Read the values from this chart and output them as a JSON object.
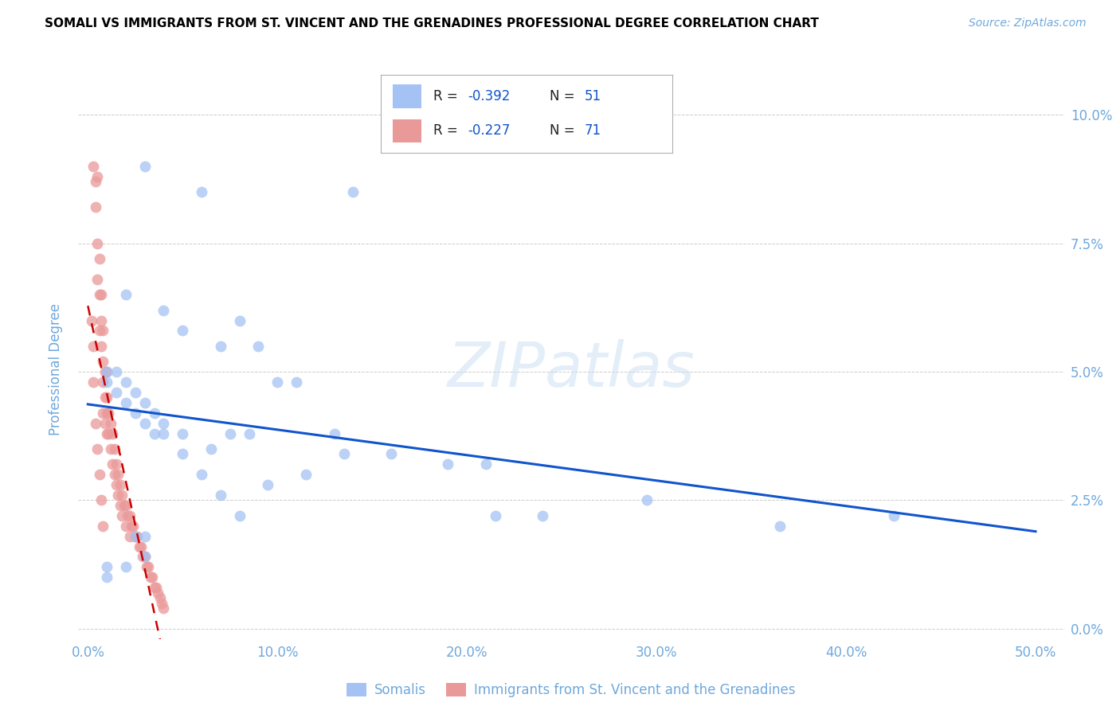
{
  "title": "SOMALI VS IMMIGRANTS FROM ST. VINCENT AND THE GRENADINES PROFESSIONAL DEGREE CORRELATION CHART",
  "source": "Source: ZipAtlas.com",
  "ylabel": "Professional Degree",
  "x_tick_labels": [
    "0.0%",
    "10.0%",
    "20.0%",
    "30.0%",
    "40.0%",
    "50.0%"
  ],
  "x_tick_values": [
    0.0,
    0.1,
    0.2,
    0.3,
    0.4,
    0.5
  ],
  "y_tick_labels": [
    "0.0%",
    "2.5%",
    "5.0%",
    "7.5%",
    "10.0%"
  ],
  "y_tick_values": [
    0.0,
    0.025,
    0.05,
    0.075,
    0.1
  ],
  "xlim": [
    -0.005,
    0.515
  ],
  "ylim": [
    -0.002,
    0.103
  ],
  "r_somali": -0.392,
  "n_somali": 51,
  "r_svg": -0.227,
  "n_svg": 71,
  "color_somali": "#a4c2f4",
  "color_svg": "#ea9999",
  "line_color_somali": "#1155cc",
  "line_color_svg": "#cc0000",
  "background": "#ffffff",
  "title_color": "#000000",
  "source_color": "#6fa8dc",
  "axis_label_color": "#6fa8dc",
  "tick_color": "#6fa8dc",
  "legend_labels": [
    "Somalis",
    "Immigrants from St. Vincent and the Grenadines"
  ],
  "somali_x": [
    0.03,
    0.06,
    0.14,
    0.02,
    0.04,
    0.05,
    0.07,
    0.08,
    0.09,
    0.1,
    0.11,
    0.13,
    0.015,
    0.02,
    0.025,
    0.03,
    0.035,
    0.04,
    0.05,
    0.065,
    0.075,
    0.085,
    0.095,
    0.115,
    0.135,
    0.16,
    0.19,
    0.21,
    0.01,
    0.01,
    0.015,
    0.02,
    0.025,
    0.03,
    0.035,
    0.04,
    0.05,
    0.06,
    0.07,
    0.08,
    0.215,
    0.24,
    0.295,
    0.365,
    0.425,
    0.01,
    0.01,
    0.02,
    0.025,
    0.03,
    0.03
  ],
  "somali_y": [
    0.09,
    0.085,
    0.085,
    0.065,
    0.062,
    0.058,
    0.055,
    0.06,
    0.055,
    0.048,
    0.048,
    0.038,
    0.05,
    0.048,
    0.046,
    0.044,
    0.042,
    0.04,
    0.038,
    0.035,
    0.038,
    0.038,
    0.028,
    0.03,
    0.034,
    0.034,
    0.032,
    0.032,
    0.05,
    0.048,
    0.046,
    0.044,
    0.042,
    0.04,
    0.038,
    0.038,
    0.034,
    0.03,
    0.026,
    0.022,
    0.022,
    0.022,
    0.025,
    0.02,
    0.022,
    0.012,
    0.01,
    0.012,
    0.018,
    0.018,
    0.014
  ],
  "svg_x": [
    0.003,
    0.004,
    0.004,
    0.005,
    0.005,
    0.005,
    0.006,
    0.006,
    0.006,
    0.007,
    0.007,
    0.007,
    0.008,
    0.008,
    0.008,
    0.008,
    0.009,
    0.009,
    0.009,
    0.01,
    0.01,
    0.01,
    0.01,
    0.011,
    0.011,
    0.012,
    0.012,
    0.013,
    0.013,
    0.014,
    0.014,
    0.015,
    0.015,
    0.016,
    0.016,
    0.017,
    0.017,
    0.018,
    0.018,
    0.019,
    0.02,
    0.02,
    0.021,
    0.022,
    0.022,
    0.023,
    0.024,
    0.025,
    0.026,
    0.027,
    0.028,
    0.029,
    0.03,
    0.031,
    0.032,
    0.033,
    0.034,
    0.035,
    0.036,
    0.037,
    0.038,
    0.039,
    0.04,
    0.002,
    0.003,
    0.003,
    0.004,
    0.005,
    0.006,
    0.007,
    0.008
  ],
  "svg_y": [
    0.09,
    0.087,
    0.082,
    0.088,
    0.075,
    0.068,
    0.072,
    0.065,
    0.058,
    0.065,
    0.06,
    0.055,
    0.058,
    0.052,
    0.048,
    0.042,
    0.05,
    0.045,
    0.04,
    0.05,
    0.045,
    0.042,
    0.038,
    0.042,
    0.038,
    0.04,
    0.035,
    0.038,
    0.032,
    0.035,
    0.03,
    0.032,
    0.028,
    0.03,
    0.026,
    0.028,
    0.024,
    0.026,
    0.022,
    0.024,
    0.024,
    0.02,
    0.022,
    0.022,
    0.018,
    0.02,
    0.02,
    0.018,
    0.018,
    0.016,
    0.016,
    0.014,
    0.014,
    0.012,
    0.012,
    0.01,
    0.01,
    0.008,
    0.008,
    0.007,
    0.006,
    0.005,
    0.004,
    0.06,
    0.055,
    0.048,
    0.04,
    0.035,
    0.03,
    0.025,
    0.02
  ]
}
